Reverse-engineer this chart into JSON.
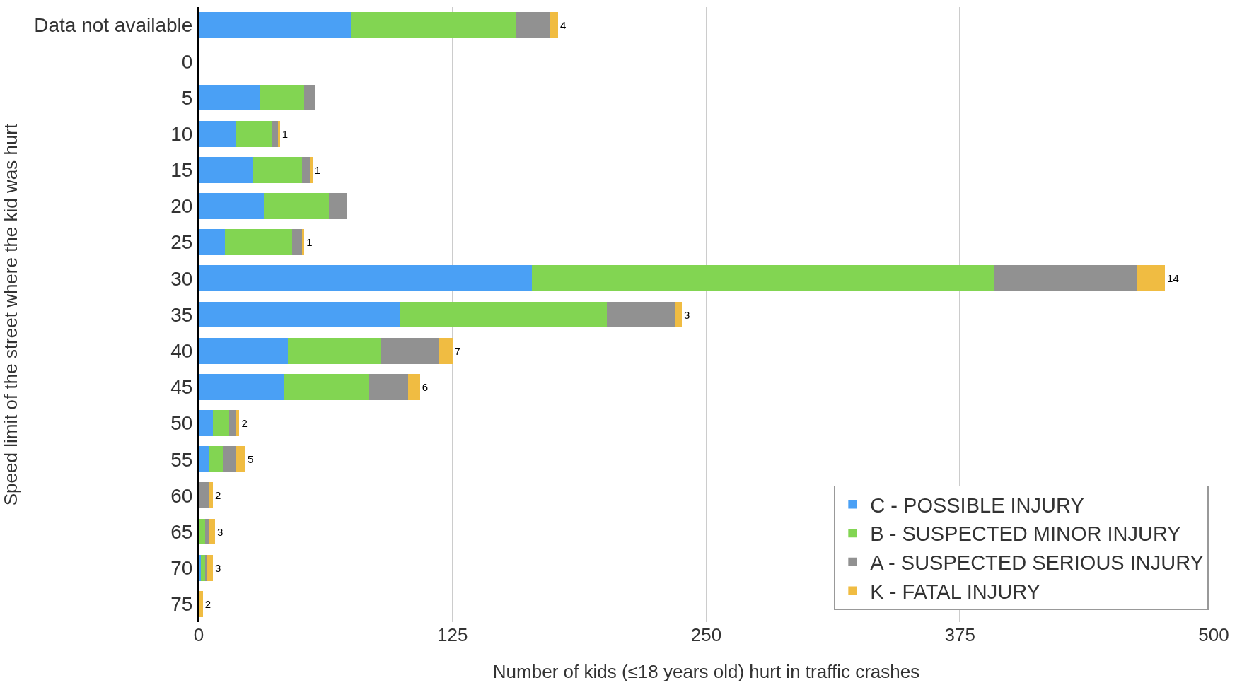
{
  "chart_data": {
    "type": "bar",
    "orientation": "horizontal",
    "stacked": true,
    "xlabel": "Number of kids (≤18 years old) hurt in traffic crashes",
    "ylabel": "Speed limit of the street where the kid was hurt",
    "categories": [
      "Data not available",
      "0",
      "5",
      "10",
      "15",
      "20",
      "25",
      "30",
      "35",
      "40",
      "45",
      "50",
      "55",
      "60",
      "65",
      "70",
      "75"
    ],
    "series": [
      {
        "name": "C - POSSIBLE INJURY",
        "color": "#4aa0f5",
        "values": [
          75,
          0,
          30,
          18,
          27,
          32,
          13,
          164,
          99,
          44,
          42,
          7,
          5,
          0,
          0,
          1,
          0
        ]
      },
      {
        "name": "B - SUSPECTED MINOR INJURY",
        "color": "#82d552",
        "values": [
          81,
          0,
          22,
          18,
          24,
          32,
          33,
          228,
          102,
          46,
          42,
          8,
          7,
          0,
          3,
          2,
          0
        ]
      },
      {
        "name": "A - SUSPECTED SERIOUS INJURY",
        "color": "#919191",
        "values": [
          17,
          0,
          5,
          3,
          4,
          9,
          5,
          70,
          34,
          28,
          19,
          3,
          6,
          5,
          2,
          1,
          0
        ]
      },
      {
        "name": "K - FATAL INJURY",
        "color": "#f0bc42",
        "values": [
          4,
          0,
          0,
          1,
          1,
          0,
          1,
          14,
          3,
          7,
          6,
          2,
          5,
          2,
          3,
          3,
          2
        ],
        "value_labels": [
          "4",
          null,
          null,
          "1",
          "1",
          null,
          "1",
          "14",
          "3",
          "7",
          "6",
          "2",
          "5",
          "2",
          "3",
          "3",
          "2"
        ]
      }
    ],
    "xlim": [
      0,
      500
    ],
    "xticks": [
      0,
      125,
      250,
      375,
      500
    ],
    "grid": "x",
    "legend": "bottom right"
  }
}
